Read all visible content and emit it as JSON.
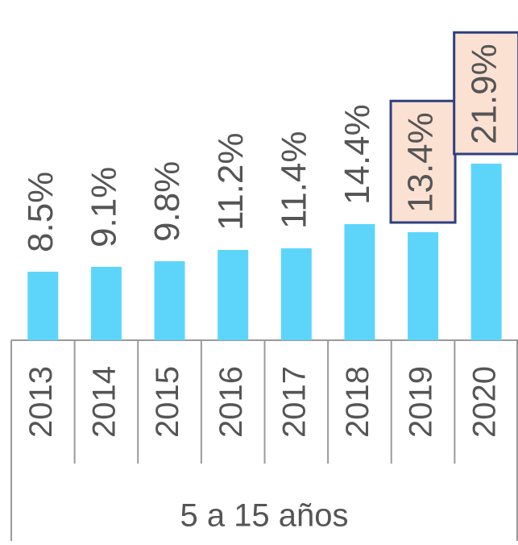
{
  "chart_data": {
    "type": "bar",
    "categories": [
      "2013",
      "2014",
      "2015",
      "2016",
      "2017",
      "2018",
      "2019",
      "2020"
    ],
    "values": [
      8.5,
      9.1,
      9.8,
      11.2,
      11.4,
      14.4,
      13.4,
      21.9
    ],
    "value_labels": [
      "8.5%",
      "9.1%",
      "9.8%",
      "11.2%",
      "11.4%",
      "14.4%",
      "13.4%",
      "21.9%"
    ],
    "color": "#5dd5fb",
    "group_label": "5 a 15 años",
    "highlight": [
      6,
      7
    ],
    "highlight_fill": "#fbe1d2",
    "highlight_stroke": "#2e3f7f"
  }
}
